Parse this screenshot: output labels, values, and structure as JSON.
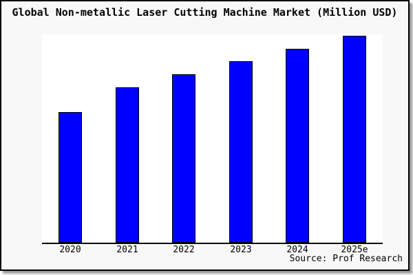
{
  "window": {
    "title": "Global Non-metallic Laser Cutting Machine Market (Million USD)",
    "source_label": "Source: Prof Research"
  },
  "colors": {
    "bar_fill": "#0000ff",
    "bar_edge": "#000000",
    "panel_bg": "#f8f8f8",
    "plot_bg": "#ffffff",
    "axis": "#000000",
    "text": "#000000"
  },
  "chart_data": {
    "type": "bar",
    "title": "Global Non-metallic Laser Cutting Machine Market (Million USD)",
    "unit": "Million USD",
    "categories": [
      "2020",
      "2021",
      "2022",
      "2023",
      "2024",
      "2025e"
    ],
    "values_relative_pct": [
      63.1,
      75.1,
      81.4,
      87.7,
      93.7,
      100
    ],
    "xlabel": "",
    "ylabel": "",
    "y_axis_ticks_visible": false,
    "grid": false,
    "legend": "none",
    "source": "Source: Prof Research"
  }
}
